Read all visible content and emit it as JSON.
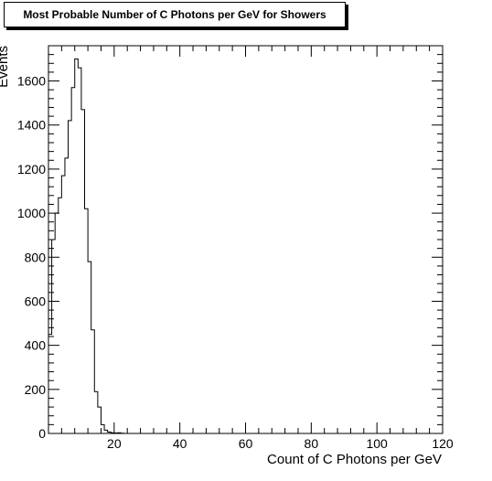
{
  "chart_data": {
    "type": "histogram",
    "title": "Most Probable Number of C Photons per GeV for Showers",
    "xlabel": "Count of C Photons per GeV",
    "ylabel": "Events",
    "xlim": [
      0,
      120
    ],
    "ylim": [
      0,
      1760
    ],
    "xticks": [
      20,
      40,
      60,
      80,
      100,
      120
    ],
    "xtick_labels": [
      "20",
      "40",
      "60",
      "80",
      "100",
      "120"
    ],
    "yticks": [
      0,
      200,
      400,
      600,
      800,
      1000,
      1200,
      1400,
      1600
    ],
    "ytick_labels": [
      "0",
      "200",
      "400",
      "600",
      "800",
      "1000",
      "1200",
      "1400",
      "1600"
    ],
    "bin_width": 1,
    "bin_start": 0,
    "values": [
      450,
      880,
      1000,
      1070,
      1170,
      1250,
      1420,
      1570,
      1700,
      1660,
      1470,
      1020,
      780,
      470,
      190,
      120,
      40,
      15,
      6,
      3,
      2,
      3,
      1,
      0,
      0
    ],
    "grid": false,
    "legend": "none",
    "colors": {
      "line": "#000000",
      "background": "#ffffff"
    }
  }
}
